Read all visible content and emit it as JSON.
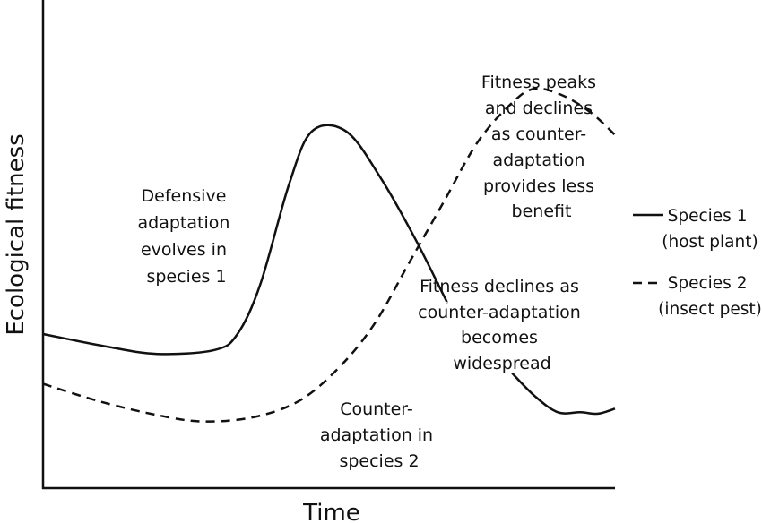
{
  "chart_data": {
    "type": "line",
    "title": "",
    "xlabel": "Time",
    "ylabel": "Ecological fitness",
    "xlim": [
      0,
      100
    ],
    "ylim": [
      0,
      100
    ],
    "grid": false,
    "legend": "right",
    "series": [
      {
        "name": "Species 1\n(host plant)",
        "style": "solid",
        "color": "#111111",
        "segments": [
          {
            "x": [
              0,
              11,
              20,
              30,
              34,
              38,
              43,
              47,
              53,
              59,
              65,
              70,
              70.6
            ],
            "y": [
              32,
              28.5,
              26.4,
              27.5,
              32,
              46,
              74,
              89,
              89,
              76,
              59,
              43,
              41
            ]
          },
          {
            "x": [
              82,
              86,
              90,
              94,
              97,
              100
            ],
            "y": [
              21,
              14.5,
              10,
              10,
              9.6,
              11
            ]
          }
        ]
      },
      {
        "name": "Species 2\n(insect pest)",
        "style": "dashed",
        "color": "#111111",
        "segments": [
          {
            "x": [
              0,
              10,
              20,
              28,
              37,
              45,
              52,
              58,
              64,
              70,
              76,
              82,
              86,
              91,
              96,
              100
            ],
            "y": [
              18,
              13,
              9.2,
              7.4,
              8.7,
              13.4,
              23,
              35,
              52,
              69,
              86,
              97,
              101,
              99,
              94,
              88
            ]
          }
        ]
      }
    ],
    "annotations": [
      "Defensive adaptation evolves in species 1",
      "Counter-adaptation in species 2",
      "Fitness peaks and declines as counter-adaptation provides less benefit",
      "Fitness declines as counter-adaptation becomes widespread"
    ]
  },
  "annotation_lines": [
    [
      "Defensive",
      "adaptation",
      "evolves in",
      "species 1"
    ],
    [
      "Counter-",
      "adaptation in",
      "species 2"
    ],
    [
      "Fitness peaks",
      "and declines",
      "as counter-",
      "adaptation",
      "provides less",
      "benefit"
    ],
    [
      "Fitness declines as",
      "counter-adaptation",
      "becomes",
      "widespread"
    ]
  ],
  "legend": {
    "species1_line1": "Species 1",
    "species1_line2": "(host plant)",
    "species2_line1": "Species 2",
    "species2_line2": "(insect pest)"
  }
}
